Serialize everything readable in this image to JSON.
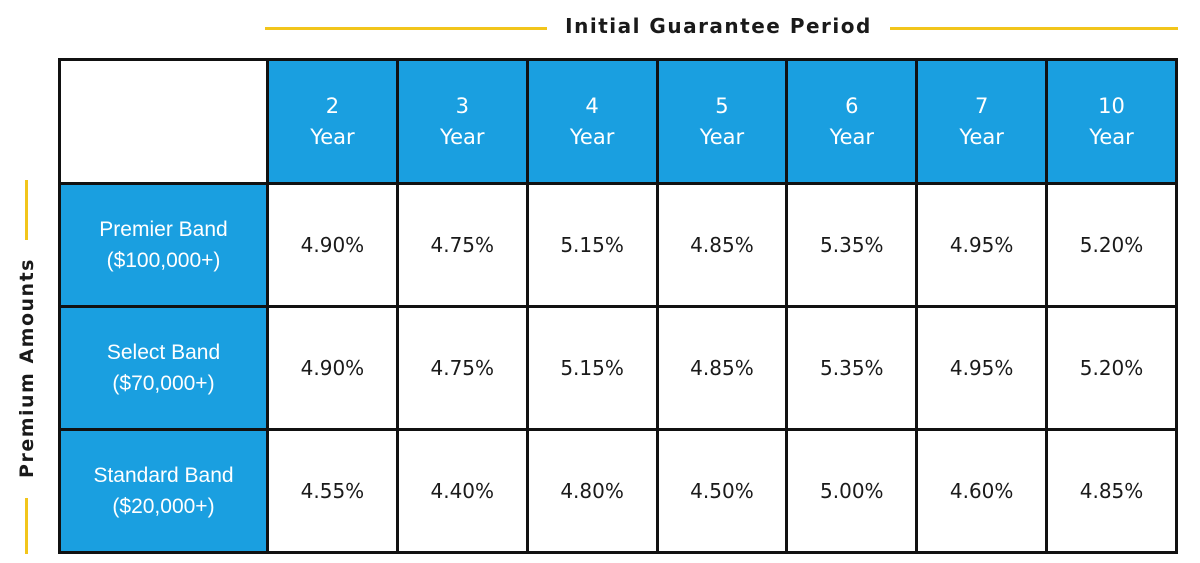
{
  "colors": {
    "accent_blue": "#1a9fe0",
    "gold_line": "#f2c51b",
    "grid": "#111111"
  },
  "top_title": "Initial Guarantee Period",
  "side_title": "Premium Amounts",
  "chart_data": {
    "type": "table",
    "column_axis_label": "Initial Guarantee Period",
    "row_axis_label": "Premium Amounts",
    "columns": [
      {
        "number": "2",
        "unit": "Year"
      },
      {
        "number": "3",
        "unit": "Year"
      },
      {
        "number": "4",
        "unit": "Year"
      },
      {
        "number": "5",
        "unit": "Year"
      },
      {
        "number": "6",
        "unit": "Year"
      },
      {
        "number": "7",
        "unit": "Year"
      },
      {
        "number": "10",
        "unit": "Year"
      }
    ],
    "rows": [
      {
        "band": "Premier Band",
        "range": "($100,000+)",
        "values": [
          "4.90%",
          "4.75%",
          "5.15%",
          "4.85%",
          "5.35%",
          "4.95%",
          "5.20%"
        ]
      },
      {
        "band": "Select Band",
        "range": "($70,000+)",
        "values": [
          "4.90%",
          "4.75%",
          "5.15%",
          "4.85%",
          "5.35%",
          "4.95%",
          "5.20%"
        ]
      },
      {
        "band": "Standard Band",
        "range": "($20,000+)",
        "values": [
          "4.55%",
          "4.40%",
          "4.80%",
          "4.50%",
          "5.00%",
          "4.60%",
          "4.85%"
        ]
      }
    ]
  }
}
